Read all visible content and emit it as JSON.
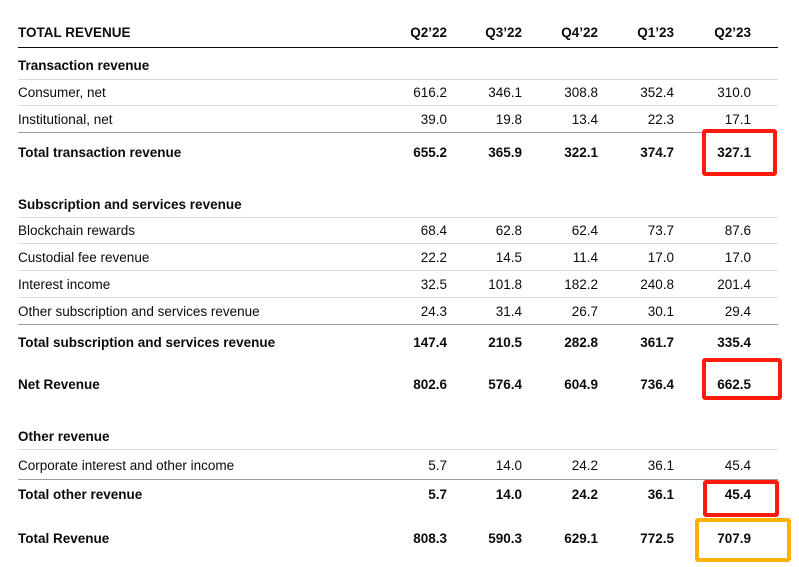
{
  "header": {
    "title": "TOTAL REVENUE",
    "periods": [
      "Q2’22",
      "Q3’22",
      "Q4’22",
      "Q1’23",
      "Q2’23"
    ]
  },
  "sections": {
    "transaction": {
      "title": "Transaction revenue",
      "rows": [
        {
          "label": "Consumer, net",
          "values": [
            "616.2",
            "346.1",
            "308.8",
            "352.4",
            "310.0"
          ]
        },
        {
          "label": "Institutional, net",
          "values": [
            "39.0",
            "19.8",
            "13.4",
            "22.3",
            "17.1"
          ]
        }
      ],
      "total": {
        "label": "Total transaction revenue",
        "values": [
          "655.2",
          "365.9",
          "322.1",
          "374.7",
          "327.1"
        ]
      }
    },
    "subscription": {
      "title": "Subscription and services revenue",
      "rows": [
        {
          "label": "Blockchain rewards",
          "values": [
            "68.4",
            "62.8",
            "62.4",
            "73.7",
            "87.6"
          ]
        },
        {
          "label": "Custodial fee revenue",
          "values": [
            "22.2",
            "14.5",
            "11.4",
            "17.0",
            "17.0"
          ]
        },
        {
          "label": "Interest income",
          "values": [
            "32.5",
            "101.8",
            "182.2",
            "240.8",
            "201.4"
          ]
        },
        {
          "label": "Other subscription and services revenue",
          "values": [
            "24.3",
            "31.4",
            "26.7",
            "30.1",
            "29.4"
          ]
        }
      ],
      "total": {
        "label": "Total subscription and services revenue",
        "values": [
          "147.4",
          "210.5",
          "282.8",
          "361.7",
          "335.4"
        ]
      }
    },
    "net": {
      "label": "Net Revenue",
      "values": [
        "802.6",
        "576.4",
        "604.9",
        "736.4",
        "662.5"
      ]
    },
    "other": {
      "title": "Other revenue",
      "rows": [
        {
          "label": "Corporate interest and other income",
          "values": [
            "5.7",
            "14.0",
            "24.2",
            "36.1",
            "45.4"
          ]
        }
      ],
      "total": {
        "label": "Total other revenue",
        "values": [
          "5.7",
          "14.0",
          "24.2",
          "36.1",
          "45.4"
        ]
      }
    },
    "grand_total": {
      "label": "Total Revenue",
      "values": [
        "808.3",
        "590.3",
        "629.1",
        "772.5",
        "707.9"
      ]
    }
  },
  "highlight_colors": {
    "red": "#ff1a0d",
    "yellow": "#ffb300"
  }
}
